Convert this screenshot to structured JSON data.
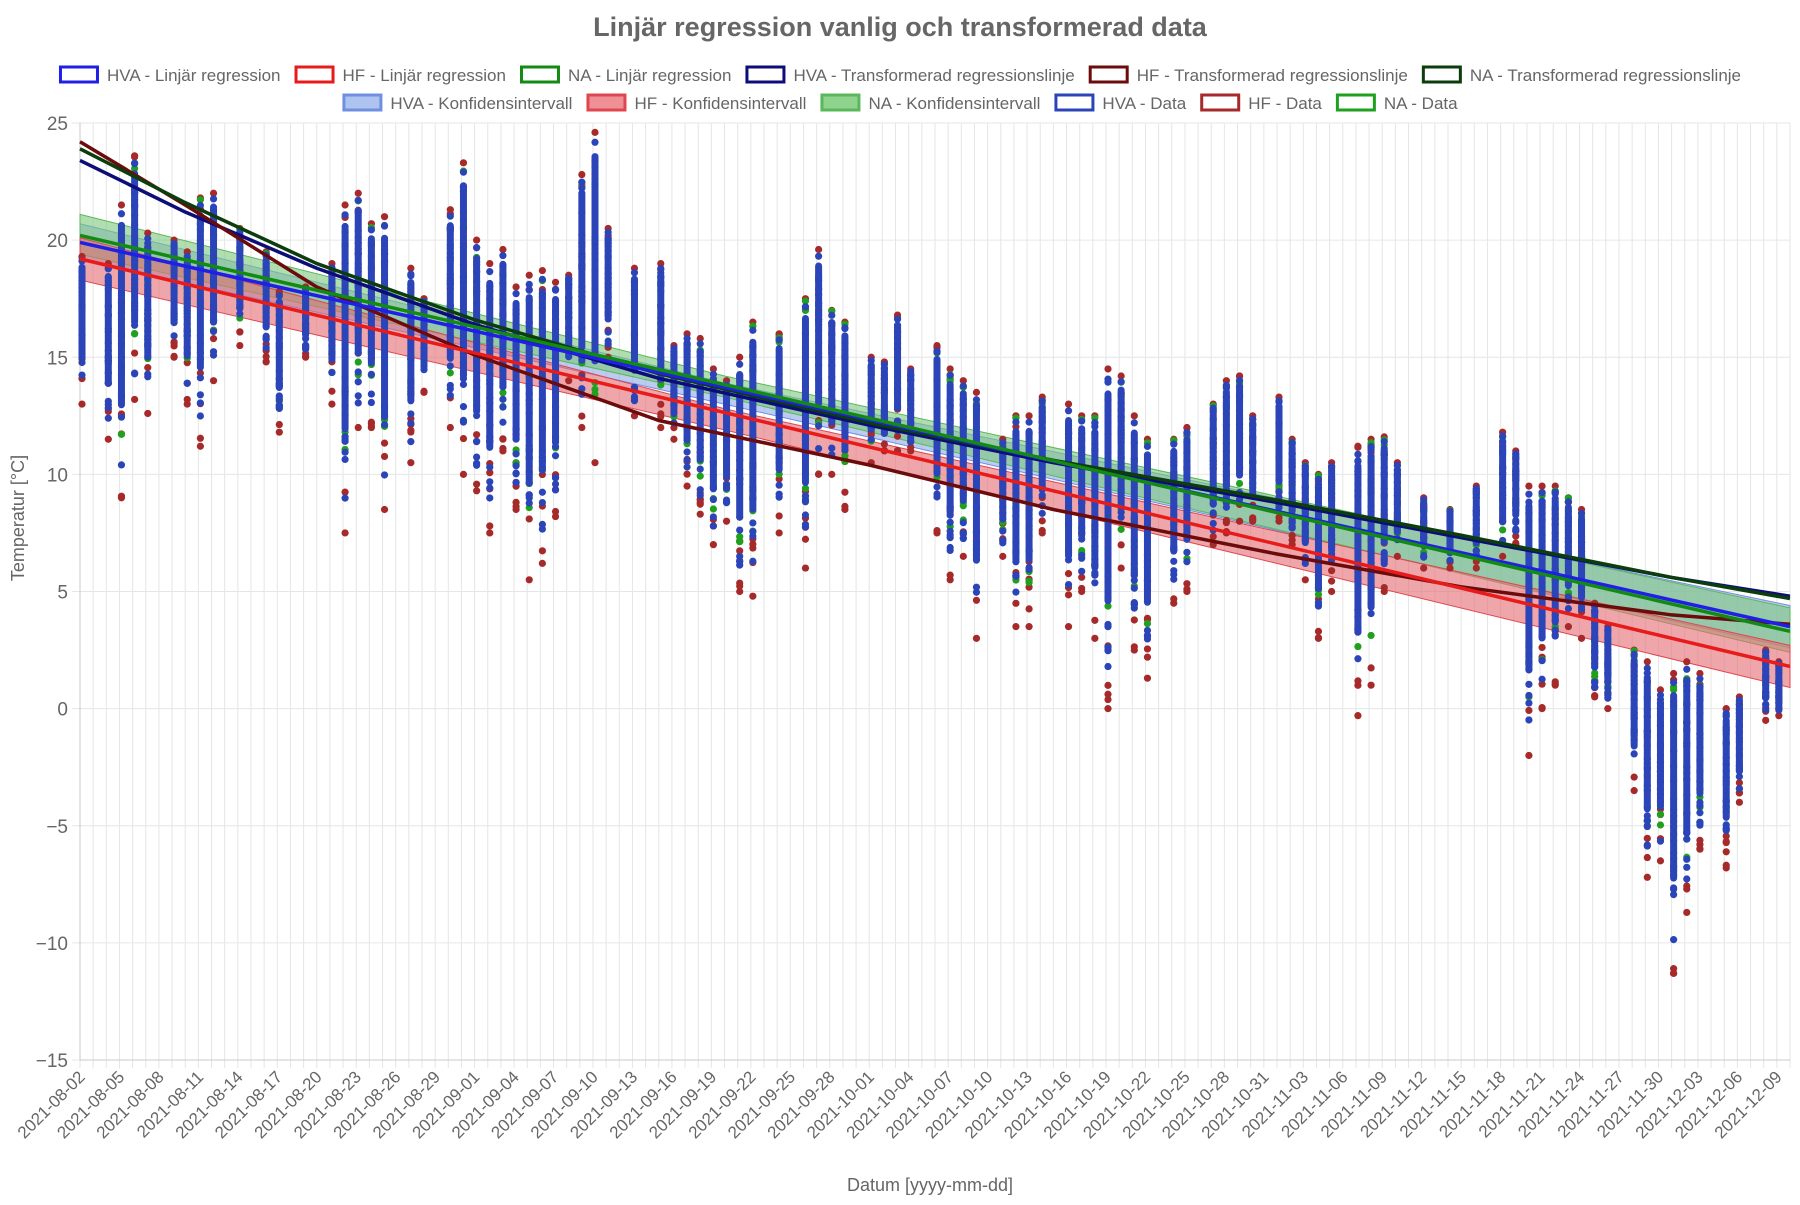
{
  "chart_data": {
    "type": "scatter",
    "title": "Linjär regression vanlig och transformerad data",
    "xlabel": "Datum [yyyy-mm-dd]",
    "ylabel": "Temperatur [°C]",
    "x_range": [
      "2021-08-02",
      "2021-12-10"
    ],
    "ylim": [
      -15,
      25
    ],
    "y_ticks": [
      "25",
      "20",
      "15",
      "10",
      "5",
      "0",
      "−5",
      "−10",
      "−15"
    ],
    "x_ticks": [
      "2021-08-02",
      "2021-08-05",
      "2021-08-08",
      "2021-08-11",
      "2021-08-14",
      "2021-08-17",
      "2021-08-20",
      "2021-08-23",
      "2021-08-26",
      "2021-08-29",
      "2021-09-01",
      "2021-09-04",
      "2021-09-07",
      "2021-09-10",
      "2021-09-13",
      "2021-09-16",
      "2021-09-19",
      "2021-09-22",
      "2021-09-25",
      "2021-09-28",
      "2021-10-01",
      "2021-10-04",
      "2021-10-07",
      "2021-10-10",
      "2021-10-13",
      "2021-10-16",
      "2021-10-19",
      "2021-10-22",
      "2021-10-25",
      "2021-10-28",
      "2021-10-31",
      "2021-11-03",
      "2021-11-06",
      "2021-11-09",
      "2021-11-12",
      "2021-11-15",
      "2021-11-18",
      "2021-11-21",
      "2021-11-24",
      "2021-11-27",
      "2021-11-30",
      "2021-12-03",
      "2021-12-06",
      "2021-12-09"
    ],
    "grid": true,
    "legend_position": "top",
    "legend": [
      {
        "label": "HVA - Linjär regression",
        "color": "#1f1fe6",
        "fill": "#ffffff"
      },
      {
        "label": "HF - Linjär regression",
        "color": "#e81b1b",
        "fill": "#ffffff"
      },
      {
        "label": "NA - Linjär regression",
        "color": "#138a13",
        "fill": "#ffffff"
      },
      {
        "label": "HVA - Transformerad regressionslinje",
        "color": "#0d0d7a",
        "fill": "#ffffff"
      },
      {
        "label": "HF - Transformerad regressionslinje",
        "color": "#6b0b0b",
        "fill": "#ffffff"
      },
      {
        "label": "NA - Transformerad regressionslinje",
        "color": "#0c3d0c",
        "fill": "#ffffff"
      },
      {
        "label": "HVA - Konfidensintervall",
        "color": "#6f8fe0",
        "fill": "#aec3ef"
      },
      {
        "label": "HF - Konfidensintervall",
        "color": "#e0464f",
        "fill": "#ef9096"
      },
      {
        "label": "NA - Konfidensintervall",
        "color": "#5ab85a",
        "fill": "#8fd38f"
      },
      {
        "label": "HVA - Data",
        "color": "#2b45b8",
        "fill": "#ffffff"
      },
      {
        "label": "HF - Data",
        "color": "#a62a2a",
        "fill": "#ffffff"
      },
      {
        "label": "NA - Data",
        "color": "#1fa01f",
        "fill": "#ffffff"
      }
    ],
    "regression_lines": [
      {
        "name": "HVA - Linjär regression",
        "color": "#1f1fe6",
        "x": [
          "2021-08-02",
          "2021-12-10"
        ],
        "y": [
          19.9,
          3.5
        ]
      },
      {
        "name": "HF - Linjär regression",
        "color": "#e81b1b",
        "x": [
          "2021-08-02",
          "2021-12-10"
        ],
        "y": [
          19.2,
          1.8
        ]
      },
      {
        "name": "NA - Linjär regression",
        "color": "#138a13",
        "x": [
          "2021-08-02",
          "2021-12-10"
        ],
        "y": [
          20.2,
          3.3
        ]
      }
    ],
    "transformed_lines": [
      {
        "name": "HVA - Transformerad regressionslinje",
        "color": "#0d0d7a",
        "x": [
          "2021-08-02",
          "2021-08-10",
          "2021-08-20",
          "2021-09-01",
          "2021-09-15",
          "2021-10-01",
          "2021-10-15",
          "2021-11-01",
          "2021-11-15",
          "2021-12-01",
          "2021-12-10"
        ],
        "y": [
          23.4,
          21.2,
          18.8,
          16.4,
          14.1,
          12.1,
          10.5,
          8.8,
          7.3,
          5.6,
          4.8
        ]
      },
      {
        "name": "HF - Transformerad regressionslinje",
        "color": "#6b0b0b",
        "x": [
          "2021-08-02",
          "2021-08-10",
          "2021-08-20",
          "2021-09-01",
          "2021-09-15",
          "2021-10-01",
          "2021-10-15",
          "2021-11-01",
          "2021-11-15",
          "2021-12-01",
          "2021-12-10"
        ],
        "y": [
          24.2,
          21.5,
          18.0,
          15.1,
          12.3,
          10.4,
          8.5,
          6.6,
          5.2,
          4.0,
          3.6
        ]
      },
      {
        "name": "NA - Transformerad regressionslinje",
        "color": "#0c3d0c",
        "x": [
          "2021-08-02",
          "2021-08-10",
          "2021-08-20",
          "2021-09-01",
          "2021-09-15",
          "2021-10-01",
          "2021-10-15",
          "2021-11-01",
          "2021-11-15",
          "2021-12-01",
          "2021-12-10"
        ],
        "y": [
          23.9,
          21.6,
          19.0,
          16.6,
          14.3,
          12.2,
          10.6,
          8.9,
          7.4,
          5.6,
          4.7
        ]
      }
    ],
    "confidence_bands": [
      {
        "name": "HVA - Konfidensintervall",
        "color": "#6f8fe0",
        "fill": "#8fa9e8",
        "x": [
          "2021-08-02",
          "2021-09-20",
          "2021-12-10"
        ],
        "lower": [
          19.2,
          13.0,
          2.6
        ],
        "upper": [
          20.7,
          13.9,
          4.4
        ]
      },
      {
        "name": "NA - Konfidensintervall",
        "color": "#5ab85a",
        "fill": "#7cc87c",
        "x": [
          "2021-08-02",
          "2021-09-20",
          "2021-12-10"
        ],
        "lower": [
          19.4,
          13.3,
          2.4
        ],
        "upper": [
          21.1,
          14.2,
          4.3
        ]
      },
      {
        "name": "HF - Konfidensintervall",
        "color": "#e0464f",
        "fill": "#e56a72",
        "x": [
          "2021-08-02",
          "2021-09-20",
          "2021-12-10"
        ],
        "lower": [
          18.3,
          11.9,
          0.9
        ],
        "upper": [
          20.1,
          12.8,
          2.7
        ]
      }
    ],
    "scatter_series": [
      {
        "name": "HF - Data",
        "color": "#a62a2a"
      },
      {
        "name": "NA - Data",
        "color": "#1fa01f"
      },
      {
        "name": "HVA - Data",
        "color": "#2b45b8"
      }
    ],
    "daily_ranges": [
      {
        "x": "2021-08-02",
        "min": 13.0,
        "max": 19.3
      },
      {
        "x": "2021-08-04",
        "min": 11.5,
        "max": 19.0
      },
      {
        "x": "2021-08-05",
        "min": 9.0,
        "max": 21.5
      },
      {
        "x": "2021-08-06",
        "min": 13.2,
        "max": 23.6
      },
      {
        "x": "2021-08-07",
        "min": 12.6,
        "max": 20.3
      },
      {
        "x": "2021-08-09",
        "min": 15.0,
        "max": 20.0
      },
      {
        "x": "2021-08-10",
        "min": 13.0,
        "max": 19.5
      },
      {
        "x": "2021-08-11",
        "min": 11.2,
        "max": 21.8
      },
      {
        "x": "2021-08-12",
        "min": 14.0,
        "max": 22.0
      },
      {
        "x": "2021-08-14",
        "min": 15.5,
        "max": 20.5
      },
      {
        "x": "2021-08-16",
        "min": 14.8,
        "max": 19.5
      },
      {
        "x": "2021-08-17",
        "min": 11.8,
        "max": 17.8
      },
      {
        "x": "2021-08-19",
        "min": 15.0,
        "max": 18.0
      },
      {
        "x": "2021-08-21",
        "min": 13.0,
        "max": 19.0
      },
      {
        "x": "2021-08-22",
        "min": 7.5,
        "max": 21.5
      },
      {
        "x": "2021-08-23",
        "min": 12.0,
        "max": 22.0
      },
      {
        "x": "2021-08-24",
        "min": 12.0,
        "max": 20.7
      },
      {
        "x": "2021-08-25",
        "min": 8.5,
        "max": 21.0
      },
      {
        "x": "2021-08-27",
        "min": 10.5,
        "max": 18.8
      },
      {
        "x": "2021-08-28",
        "min": 13.5,
        "max": 17.5
      },
      {
        "x": "2021-08-30",
        "min": 12.0,
        "max": 21.3
      },
      {
        "x": "2021-08-31",
        "min": 10.0,
        "max": 23.3
      },
      {
        "x": "2021-09-01",
        "min": 9.3,
        "max": 20.0
      },
      {
        "x": "2021-09-02",
        "min": 7.5,
        "max": 19.0
      },
      {
        "x": "2021-09-03",
        "min": 11.0,
        "max": 19.6
      },
      {
        "x": "2021-09-04",
        "min": 8.5,
        "max": 18.0
      },
      {
        "x": "2021-09-05",
        "min": 5.5,
        "max": 18.5
      },
      {
        "x": "2021-09-06",
        "min": 6.2,
        "max": 18.7
      },
      {
        "x": "2021-09-07",
        "min": 8.2,
        "max": 18.2
      },
      {
        "x": "2021-09-08",
        "min": 14.0,
        "max": 18.5
      },
      {
        "x": "2021-09-09",
        "min": 12.0,
        "max": 22.8
      },
      {
        "x": "2021-09-10",
        "min": 10.5,
        "max": 24.6
      },
      {
        "x": "2021-09-11",
        "min": 15.0,
        "max": 20.5
      },
      {
        "x": "2021-09-13",
        "min": 12.5,
        "max": 18.8
      },
      {
        "x": "2021-09-15",
        "min": 12.0,
        "max": 19.0
      },
      {
        "x": "2021-09-16",
        "min": 11.5,
        "max": 15.5
      },
      {
        "x": "2021-09-17",
        "min": 9.5,
        "max": 16.0
      },
      {
        "x": "2021-09-18",
        "min": 8.3,
        "max": 15.8
      },
      {
        "x": "2021-09-19",
        "min": 7.0,
        "max": 14.5
      },
      {
        "x": "2021-09-20",
        "min": 8.0,
        "max": 14.0
      },
      {
        "x": "2021-09-21",
        "min": 5.0,
        "max": 15.0
      },
      {
        "x": "2021-09-22",
        "min": 4.8,
        "max": 16.5
      },
      {
        "x": "2021-09-24",
        "min": 7.5,
        "max": 16.0
      },
      {
        "x": "2021-09-26",
        "min": 6.0,
        "max": 17.5
      },
      {
        "x": "2021-09-27",
        "min": 10.0,
        "max": 19.6
      },
      {
        "x": "2021-09-28",
        "min": 10.0,
        "max": 17.0
      },
      {
        "x": "2021-09-29",
        "min": 8.5,
        "max": 16.5
      },
      {
        "x": "2021-10-01",
        "min": 10.5,
        "max": 15.0
      },
      {
        "x": "2021-10-02",
        "min": 11.0,
        "max": 14.8
      },
      {
        "x": "2021-10-03",
        "min": 11.0,
        "max": 16.8
      },
      {
        "x": "2021-10-04",
        "min": 11.0,
        "max": 14.5
      },
      {
        "x": "2021-10-06",
        "min": 7.5,
        "max": 15.5
      },
      {
        "x": "2021-10-07",
        "min": 5.5,
        "max": 14.5
      },
      {
        "x": "2021-10-08",
        "min": 6.5,
        "max": 14.0
      },
      {
        "x": "2021-10-09",
        "min": 3.0,
        "max": 13.5
      },
      {
        "x": "2021-10-11",
        "min": 6.5,
        "max": 11.5
      },
      {
        "x": "2021-10-12",
        "min": 3.5,
        "max": 12.5
      },
      {
        "x": "2021-10-13",
        "min": 3.5,
        "max": 12.5
      },
      {
        "x": "2021-10-14",
        "min": 7.5,
        "max": 13.3
      },
      {
        "x": "2021-10-16",
        "min": 3.5,
        "max": 13.0
      },
      {
        "x": "2021-10-17",
        "min": 5.0,
        "max": 12.5
      },
      {
        "x": "2021-10-18",
        "min": 3.0,
        "max": 12.5
      },
      {
        "x": "2021-10-19",
        "min": 0.0,
        "max": 14.5
      },
      {
        "x": "2021-10-20",
        "min": 6.0,
        "max": 14.2
      },
      {
        "x": "2021-10-21",
        "min": 2.5,
        "max": 12.5
      },
      {
        "x": "2021-10-22",
        "min": 1.3,
        "max": 11.5
      },
      {
        "x": "2021-10-24",
        "min": 4.5,
        "max": 11.5
      },
      {
        "x": "2021-10-25",
        "min": 5.0,
        "max": 12.0
      },
      {
        "x": "2021-10-27",
        "min": 7.0,
        "max": 13.0
      },
      {
        "x": "2021-10-28",
        "min": 7.5,
        "max": 14.0
      },
      {
        "x": "2021-10-29",
        "min": 8.0,
        "max": 14.2
      },
      {
        "x": "2021-10-30",
        "min": 8.0,
        "max": 12.5
      },
      {
        "x": "2021-11-01",
        "min": 8.0,
        "max": 13.3
      },
      {
        "x": "2021-11-02",
        "min": 7.0,
        "max": 11.5
      },
      {
        "x": "2021-11-03",
        "min": 5.5,
        "max": 10.5
      },
      {
        "x": "2021-11-04",
        "min": 3.0,
        "max": 10.0
      },
      {
        "x": "2021-11-05",
        "min": 5.0,
        "max": 10.5
      },
      {
        "x": "2021-11-07",
        "min": -0.3,
        "max": 11.2
      },
      {
        "x": "2021-11-08",
        "min": 1.0,
        "max": 11.5
      },
      {
        "x": "2021-11-09",
        "min": 5.0,
        "max": 11.6
      },
      {
        "x": "2021-11-10",
        "min": 6.5,
        "max": 10.5
      },
      {
        "x": "2021-11-12",
        "min": 6.0,
        "max": 9.0
      },
      {
        "x": "2021-11-14",
        "min": 6.0,
        "max": 8.5
      },
      {
        "x": "2021-11-16",
        "min": 6.0,
        "max": 9.5
      },
      {
        "x": "2021-11-18",
        "min": 6.5,
        "max": 11.8
      },
      {
        "x": "2021-11-19",
        "min": 7.0,
        "max": 11.0
      },
      {
        "x": "2021-11-20",
        "min": -2.0,
        "max": 9.5
      },
      {
        "x": "2021-11-21",
        "min": 0.0,
        "max": 9.5
      },
      {
        "x": "2021-11-22",
        "min": 1.0,
        "max": 9.5
      },
      {
        "x": "2021-11-23",
        "min": 3.5,
        "max": 9.0
      },
      {
        "x": "2021-11-24",
        "min": 3.0,
        "max": 8.5
      },
      {
        "x": "2021-11-25",
        "min": 0.5,
        "max": 4.5
      },
      {
        "x": "2021-11-26",
        "min": 0.0,
        "max": 3.5
      },
      {
        "x": "2021-11-28",
        "min": -3.5,
        "max": 2.5
      },
      {
        "x": "2021-11-29",
        "min": -7.2,
        "max": 2.0
      },
      {
        "x": "2021-11-30",
        "min": -6.5,
        "max": 0.8
      },
      {
        "x": "2021-12-01",
        "min": -11.3,
        "max": 1.5
      },
      {
        "x": "2021-12-02",
        "min": -8.7,
        "max": 2.0
      },
      {
        "x": "2021-12-03",
        "min": -6.0,
        "max": 1.5
      },
      {
        "x": "2021-12-05",
        "min": -6.8,
        "max": 0.0
      },
      {
        "x": "2021-12-06",
        "min": -4.0,
        "max": 0.5
      },
      {
        "x": "2021-12-08",
        "min": -0.5,
        "max": 2.5
      },
      {
        "x": "2021-12-09",
        "min": -0.3,
        "max": 2.0
      }
    ],
    "outliers": [
      {
        "x": "2021-12-01",
        "y": -11.3,
        "series": "HF - Data"
      },
      {
        "x": "2021-12-01",
        "y": -11.1,
        "series": "HF - Data"
      }
    ]
  }
}
